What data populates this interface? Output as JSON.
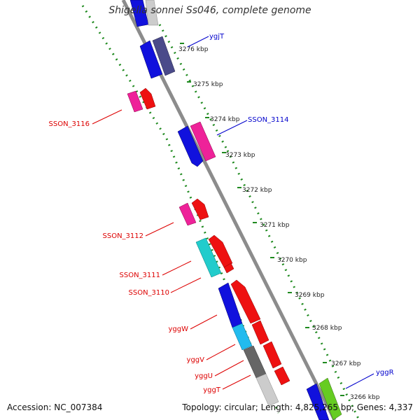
{
  "title": "Shigella sonnei Ss046, complete genome",
  "footer": {
    "accession": "Accession: NC_007384",
    "topology": "Topology: circular; Length: 4,825,265 bp; Genes: 4,337"
  },
  "ticks": [
    "3276 kbp",
    "3275 kbp",
    "3274 kbp",
    "3273 kbp",
    "3272 kbp",
    "3271 kbp",
    "3270 kbp",
    "3269 kbp",
    "3268 kbp",
    "3267 kbp",
    "3266 kbp"
  ],
  "gene_labels": {
    "ygjT": "ygjT",
    "SSON_3114": "SSON_3114",
    "SSON_3116": "SSON_3116",
    "SSON_3112": "SSON_3112",
    "SSON_3111": "SSON_3111",
    "SSON_3110": "SSON_3110",
    "yggW": "yggW",
    "yggV": "yggV",
    "yggU": "yggU",
    "yggT": "yggT",
    "yggR": "yggR"
  },
  "colors": {
    "backbone": "#8c8c8c",
    "dotted_track": "#1f8a1f",
    "label_forward": "#0000cc",
    "label_reverse": "#dd0000",
    "blue": "#1111dd",
    "navy": "#4a4a8a",
    "magenta": "#ee2299",
    "red": "#ee1111",
    "cyan": "#22cccc",
    "sky": "#22bbee",
    "gray": "#666666",
    "silver": "#cccccc",
    "lime": "#66cc22"
  }
}
